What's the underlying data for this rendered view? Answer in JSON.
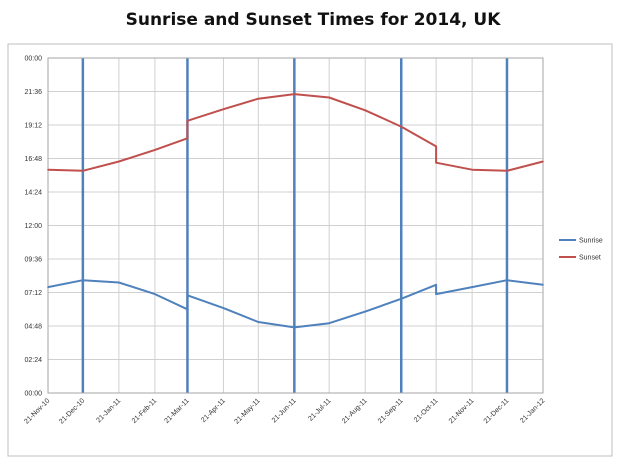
{
  "chart_data": {
    "type": "line",
    "title": "Sunrise and Sunset Times for 2014, UK",
    "xlabel": "",
    "ylabel": "",
    "x_ticks": [
      "21-Nov-10",
      "21-Dec-10",
      "21-Jan-11",
      "21-Feb-11",
      "21-Mar-11",
      "21-Apr-11",
      "21-May-11",
      "21-Jun-11",
      "21-Jul-11",
      "21-Aug-11",
      "21-Sep-11",
      "21-Oct-11",
      "21-Nov-11",
      "21-Dec-11",
      "21-Jan-12"
    ],
    "y_ticks": [
      "00:00",
      "02:24",
      "04:48",
      "07:12",
      "09:36",
      "12:00",
      "14:24",
      "16:48",
      "19:12",
      "21:36",
      "00:00"
    ],
    "ylim": [
      "00:00",
      "24:00"
    ],
    "y_tick_step": "02:24",
    "grid": true,
    "legend_position": "right",
    "vertical_markers": [
      "21-Dec-10",
      "21-Mar-11",
      "21-Jun-11",
      "21-Sep-11",
      "21-Dec-11"
    ],
    "series": [
      {
        "name": "Sunrise",
        "color": "#4f81bd",
        "points": [
          {
            "x": "21-Nov-10",
            "y": "07:35"
          },
          {
            "x": "21-Dec-10",
            "y": "08:05"
          },
          {
            "x": "21-Jan-11",
            "y": "07:55"
          },
          {
            "x": "21-Feb-11",
            "y": "07:05"
          },
          {
            "x": "21-Mar-11",
            "y": "06:00"
          },
          {
            "x": "21-Mar-11",
            "y": "07:00"
          },
          {
            "x": "21-Apr-11",
            "y": "06:05"
          },
          {
            "x": "21-May-11",
            "y": "05:05"
          },
          {
            "x": "21-Jun-11",
            "y": "04:42"
          },
          {
            "x": "21-Jul-11",
            "y": "05:00"
          },
          {
            "x": "21-Aug-11",
            "y": "05:50"
          },
          {
            "x": "21-Sep-11",
            "y": "06:45"
          },
          {
            "x": "21-Oct-11",
            "y": "07:45"
          },
          {
            "x": "21-Oct-11",
            "y": "07:05"
          },
          {
            "x": "21-Nov-11",
            "y": "07:35"
          },
          {
            "x": "21-Dec-11",
            "y": "08:05"
          },
          {
            "x": "21-Jan-12",
            "y": "07:45"
          }
        ]
      },
      {
        "name": "Sunset",
        "color": "#c0504d",
        "points": [
          {
            "x": "21-Nov-10",
            "y": "16:00"
          },
          {
            "x": "21-Dec-10",
            "y": "15:55"
          },
          {
            "x": "21-Jan-11",
            "y": "16:35"
          },
          {
            "x": "21-Feb-11",
            "y": "17:25"
          },
          {
            "x": "21-Mar-11",
            "y": "18:15"
          },
          {
            "x": "21-Mar-11",
            "y": "19:30"
          },
          {
            "x": "21-Apr-11",
            "y": "20:20"
          },
          {
            "x": "21-May-11",
            "y": "21:05"
          },
          {
            "x": "21-Jun-11",
            "y": "21:25"
          },
          {
            "x": "21-Jul-11",
            "y": "21:10"
          },
          {
            "x": "21-Aug-11",
            "y": "20:15"
          },
          {
            "x": "21-Sep-11",
            "y": "19:05"
          },
          {
            "x": "21-Oct-11",
            "y": "17:40"
          },
          {
            "x": "21-Oct-11",
            "y": "16:30"
          },
          {
            "x": "21-Nov-11",
            "y": "16:00"
          },
          {
            "x": "21-Dec-11",
            "y": "15:55"
          },
          {
            "x": "21-Jan-12",
            "y": "16:35"
          }
        ]
      }
    ]
  }
}
